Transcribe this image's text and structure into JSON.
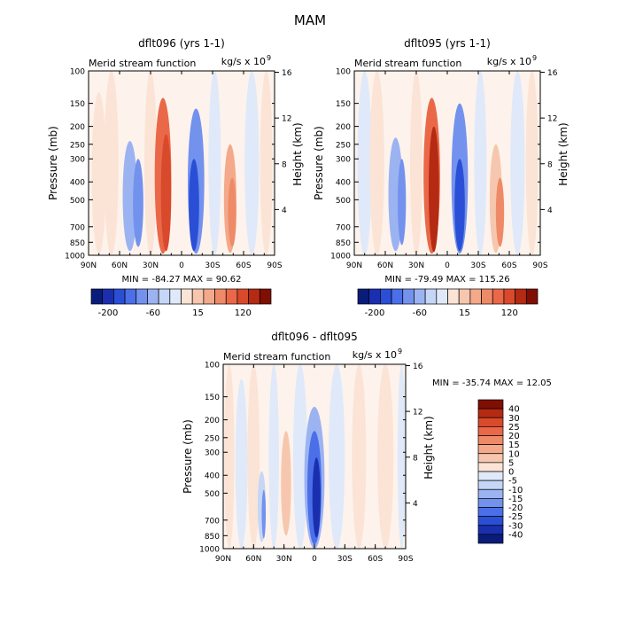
{
  "title": "MAM",
  "colors": {
    "blues": [
      "#0a1c7a",
      "#1a2fb0",
      "#2a4fd6",
      "#4a6fe8",
      "#7392ee",
      "#9cb3f2",
      "#c5d6f7",
      "#dfe9fa"
    ],
    "reds": [
      "#fbe4d6",
      "#f6c7ae",
      "#f3a98a",
      "#ef8a68",
      "#ea6848",
      "#d94a2c",
      "#b42a12",
      "#7e0f02"
    ],
    "neutral": "#fdf3ec"
  },
  "chart_data": [
    {
      "type": "heatmap",
      "panel": "top-left",
      "title": "dflt096 (yrs 1-1)",
      "left_label": "Merid stream function",
      "right_label": "kg/s x 10",
      "units_exp": "9",
      "ylabel": "Pressure (mb)",
      "y2label": "Height (km)",
      "pressure_ticks": [
        "100",
        "150",
        "200",
        "250",
        "300",
        "400",
        "500",
        "700",
        "850",
        "1000"
      ],
      "pressure_values": [
        100,
        150,
        200,
        250,
        300,
        400,
        500,
        700,
        850,
        1000
      ],
      "height_ticks": [
        "16",
        "12",
        "8",
        "4"
      ],
      "height_values": [
        16,
        12,
        8,
        4
      ],
      "x_ticks": [
        "90N",
        "60N",
        "30N",
        "0",
        "30S",
        "60S",
        "90S"
      ],
      "x_values": [
        90,
        60,
        30,
        0,
        -30,
        -60,
        -90
      ],
      "xlim": [
        90,
        -90
      ],
      "ylim": [
        1000,
        100
      ],
      "min_text": "MIN = -84.27   MAX =  90.62",
      "min": -84.27,
      "max": 90.62,
      "colorbar_labels": [
        "-200",
        "-60",
        "15",
        "120"
      ],
      "cells": [
        {
          "lat": 80,
          "p": 550,
          "lat_w": 14,
          "p_top": 130,
          "p_bot": 980,
          "level": 1
        },
        {
          "lat": 68,
          "p": 600,
          "lat_w": 14,
          "p_top": 100,
          "p_bot": 1000,
          "level": 1
        },
        {
          "lat": 50,
          "p": 450,
          "lat_w": 14,
          "p_top": 240,
          "p_bot": 950,
          "level": -3
        },
        {
          "lat": 42,
          "p": 500,
          "lat_w": 10,
          "p_top": 300,
          "p_bot": 900,
          "level": -4
        },
        {
          "lat": 30,
          "p": 550,
          "lat_w": 12,
          "p_top": 100,
          "p_bot": 1000,
          "level": 1
        },
        {
          "lat": 18,
          "p": 480,
          "lat_w": 16,
          "p_top": 140,
          "p_bot": 980,
          "level": 5
        },
        {
          "lat": 15,
          "p": 520,
          "lat_w": 10,
          "p_top": 220,
          "p_bot": 950,
          "level": 6
        },
        {
          "lat": 0,
          "p": 500,
          "lat_w": 8,
          "p_top": 100,
          "p_bot": 1000,
          "level": 0
        },
        {
          "lat": -14,
          "p": 480,
          "lat_w": 16,
          "p_top": 160,
          "p_bot": 980,
          "level": -4
        },
        {
          "lat": -12,
          "p": 600,
          "lat_w": 10,
          "p_top": 300,
          "p_bot": 950,
          "level": -6
        },
        {
          "lat": -32,
          "p": 550,
          "lat_w": 12,
          "p_top": 100,
          "p_bot": 1000,
          "level": -1
        },
        {
          "lat": -47,
          "p": 560,
          "lat_w": 12,
          "p_top": 250,
          "p_bot": 970,
          "level": 3
        },
        {
          "lat": -49,
          "p": 600,
          "lat_w": 8,
          "p_top": 380,
          "p_bot": 900,
          "level": 4
        },
        {
          "lat": -68,
          "p": 550,
          "lat_w": 14,
          "p_top": 100,
          "p_bot": 1000,
          "level": -1
        },
        {
          "lat": -82,
          "p": 550,
          "lat_w": 12,
          "p_top": 100,
          "p_bot": 1000,
          "level": 1
        }
      ]
    },
    {
      "type": "heatmap",
      "panel": "top-right",
      "title": "dflt095 (yrs 1-1)",
      "left_label": "Merid stream function",
      "right_label": "kg/s x 10",
      "units_exp": "9",
      "ylabel": "Pressure (mb)",
      "y2label": "Height (km)",
      "pressure_ticks": [
        "100",
        "150",
        "200",
        "250",
        "300",
        "400",
        "500",
        "700",
        "850",
        "1000"
      ],
      "pressure_values": [
        100,
        150,
        200,
        250,
        300,
        400,
        500,
        700,
        850,
        1000
      ],
      "height_ticks": [
        "16",
        "12",
        "8",
        "4"
      ],
      "height_values": [
        16,
        12,
        8,
        4
      ],
      "x_ticks": [
        "90N",
        "60N",
        "30N",
        "0",
        "30S",
        "60S",
        "90S"
      ],
      "x_values": [
        90,
        60,
        30,
        0,
        -30,
        -60,
        -90
      ],
      "xlim": [
        90,
        -90
      ],
      "ylim": [
        1000,
        100
      ],
      "min_text": "MIN = -79.49   MAX = 115.26",
      "min": -79.49,
      "max": 115.26,
      "colorbar_labels": [
        "-200",
        "-60",
        "15",
        "120"
      ],
      "cells": [
        {
          "lat": 80,
          "p": 550,
          "lat_w": 14,
          "p_top": 100,
          "p_bot": 1000,
          "level": -1
        },
        {
          "lat": 68,
          "p": 600,
          "lat_w": 14,
          "p_top": 100,
          "p_bot": 1000,
          "level": 1
        },
        {
          "lat": 50,
          "p": 450,
          "lat_w": 14,
          "p_top": 230,
          "p_bot": 950,
          "level": -3
        },
        {
          "lat": 44,
          "p": 480,
          "lat_w": 8,
          "p_top": 300,
          "p_bot": 880,
          "level": -4
        },
        {
          "lat": 30,
          "p": 550,
          "lat_w": 12,
          "p_top": 100,
          "p_bot": 1000,
          "level": 1
        },
        {
          "lat": 15,
          "p": 480,
          "lat_w": 16,
          "p_top": 140,
          "p_bot": 980,
          "level": 5
        },
        {
          "lat": 13,
          "p": 520,
          "lat_w": 10,
          "p_top": 200,
          "p_bot": 960,
          "level": 7
        },
        {
          "lat": 0,
          "p": 500,
          "lat_w": 8,
          "p_top": 100,
          "p_bot": 1000,
          "level": 0
        },
        {
          "lat": -12,
          "p": 500,
          "lat_w": 16,
          "p_top": 150,
          "p_bot": 980,
          "level": -4
        },
        {
          "lat": -12,
          "p": 600,
          "lat_w": 10,
          "p_top": 300,
          "p_bot": 950,
          "level": -6
        },
        {
          "lat": -32,
          "p": 550,
          "lat_w": 12,
          "p_top": 100,
          "p_bot": 1000,
          "level": -1
        },
        {
          "lat": -47,
          "p": 560,
          "lat_w": 12,
          "p_top": 250,
          "p_bot": 970,
          "level": 2
        },
        {
          "lat": -51,
          "p": 600,
          "lat_w": 8,
          "p_top": 380,
          "p_bot": 900,
          "level": 4
        },
        {
          "lat": -68,
          "p": 550,
          "lat_w": 14,
          "p_top": 100,
          "p_bot": 1000,
          "level": -1
        },
        {
          "lat": -82,
          "p": 550,
          "lat_w": 12,
          "p_top": 100,
          "p_bot": 1000,
          "level": 1
        }
      ]
    },
    {
      "type": "heatmap",
      "panel": "bottom",
      "title": "dflt096 - dflt095",
      "left_label": "Merid stream function",
      "right_label": "kg/s x 10",
      "units_exp": "9",
      "ylabel": "Pressure (mb)",
      "y2label": "Height (km)",
      "pressure_ticks": [
        "100",
        "150",
        "200",
        "250",
        "300",
        "400",
        "500",
        "700",
        "850",
        "1000"
      ],
      "pressure_values": [
        100,
        150,
        200,
        250,
        300,
        400,
        500,
        700,
        850,
        1000
      ],
      "height_ticks": [
        "16",
        "12",
        "8",
        "4"
      ],
      "height_values": [
        16,
        12,
        8,
        4
      ],
      "x_ticks": [
        "90N",
        "60N",
        "30N",
        "0",
        "30S",
        "60S",
        "90S"
      ],
      "x_values": [
        90,
        60,
        30,
        0,
        -30,
        -60,
        -90
      ],
      "xlim": [
        90,
        -90
      ],
      "ylim": [
        1000,
        100
      ],
      "min_text": "MIN = -35.74   MAX =  12.05",
      "min": -35.74,
      "max": 12.05,
      "legend_labels": [
        "40",
        "30",
        "25",
        "20",
        "15",
        "10",
        "5",
        "0",
        "-5",
        "-10",
        "-15",
        "-20",
        "-25",
        "-30",
        "-40"
      ],
      "cells": [
        {
          "lat": 84,
          "p": 550,
          "lat_w": 10,
          "p_top": 100,
          "p_bot": 1000,
          "level": 1
        },
        {
          "lat": 72,
          "p": 550,
          "lat_w": 12,
          "p_top": 120,
          "p_bot": 1000,
          "level": -1
        },
        {
          "lat": 60,
          "p": 550,
          "lat_w": 12,
          "p_top": 100,
          "p_bot": 1000,
          "level": 1
        },
        {
          "lat": 52,
          "p": 620,
          "lat_w": 8,
          "p_top": 380,
          "p_bot": 920,
          "level": -2
        },
        {
          "lat": 50,
          "p": 650,
          "lat_w": 4,
          "p_top": 480,
          "p_bot": 880,
          "level": -4
        },
        {
          "lat": 40,
          "p": 550,
          "lat_w": 10,
          "p_top": 100,
          "p_bot": 1000,
          "level": -1
        },
        {
          "lat": 28,
          "p": 500,
          "lat_w": 10,
          "p_top": 230,
          "p_bot": 850,
          "level": 2
        },
        {
          "lat": 14,
          "p": 500,
          "lat_w": 14,
          "p_top": 100,
          "p_bot": 1000,
          "level": -1
        },
        {
          "lat": 0,
          "p": 480,
          "lat_w": 20,
          "p_top": 170,
          "p_bot": 1000,
          "level": -3
        },
        {
          "lat": 0,
          "p": 500,
          "lat_w": 14,
          "p_top": 230,
          "p_bot": 950,
          "level": -5
        },
        {
          "lat": -2,
          "p": 520,
          "lat_w": 8,
          "p_top": 320,
          "p_bot": 870,
          "level": -7
        },
        {
          "lat": -22,
          "p": 550,
          "lat_w": 16,
          "p_top": 100,
          "p_bot": 1000,
          "level": -1
        },
        {
          "lat": -44,
          "p": 550,
          "lat_w": 14,
          "p_top": 100,
          "p_bot": 1000,
          "level": 1
        },
        {
          "lat": -70,
          "p": 550,
          "lat_w": 16,
          "p_top": 100,
          "p_bot": 1000,
          "level": 1
        },
        {
          "lat": -86,
          "p": 550,
          "lat_w": 8,
          "p_top": 100,
          "p_bot": 1000,
          "level": -1
        }
      ]
    }
  ]
}
